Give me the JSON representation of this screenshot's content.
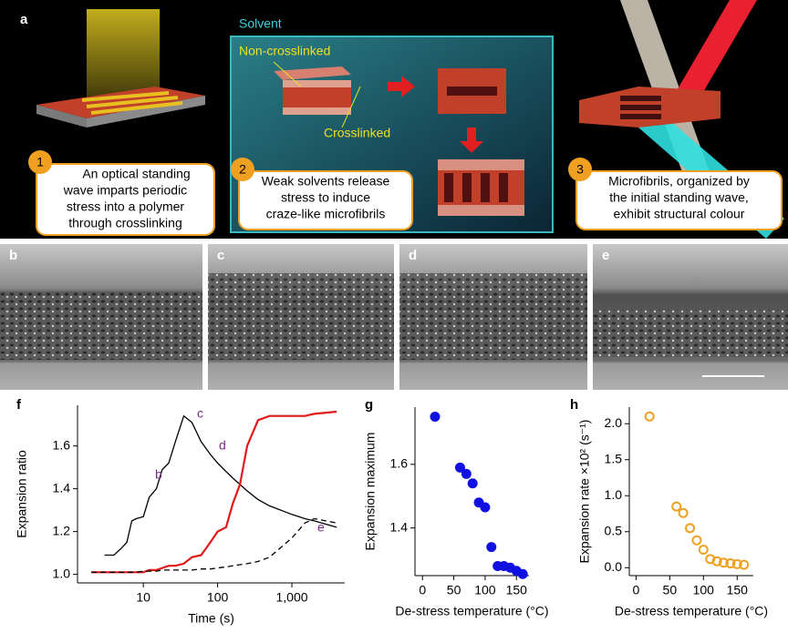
{
  "panel_a": {
    "label": "a",
    "solvent": "Solvent",
    "non_crosslinked": "Non-crosslinked",
    "crosslinked": "Crosslinked",
    "steps": [
      {
        "number": "1",
        "lines": [
          "An optical standing",
          "wave imparts periodic",
          "stress into a polymer",
          "through crosslinking"
        ]
      },
      {
        "number": "2",
        "lines": [
          "Weak solvents release",
          "stress to induce",
          "craze-like microfibrils"
        ]
      },
      {
        "number": "3",
        "lines": [
          "Microfibrils, organized by",
          "the initial standing wave,",
          "exhibit structural colour"
        ]
      }
    ]
  },
  "sem_panels": [
    "b",
    "c",
    "d",
    "e"
  ],
  "chart_data": [
    {
      "type": "line",
      "panel_label": "f",
      "x_label": "Time (s)",
      "y_label": "Expansion ratio",
      "xscale": "log",
      "xlim": [
        1.3,
        5150
      ],
      "ylim": [
        0.96,
        1.79
      ],
      "xticks": [
        10,
        100,
        {
          "value": 1000,
          "label": "1,000"
        }
      ],
      "yticks": [
        {
          "value": 1,
          "label": "1.0"
        },
        1.2,
        1.4,
        1.6
      ],
      "annotations": [
        "c",
        "d",
        "b",
        "e"
      ],
      "x": [
        2,
        3,
        4,
        5,
        6,
        7,
        8,
        10,
        12,
        15,
        18,
        22,
        27,
        35,
        45,
        60,
        80,
        100,
        130,
        160,
        200,
        250,
        350,
        500,
        1000,
        1500,
        2000,
        4000
      ],
      "series": [
        {
          "color": "#000000",
          "style": "solid",
          "values": [
            null,
            1.09,
            1.09,
            1.12,
            1.15,
            1.25,
            1.26,
            1.27,
            1.36,
            1.4,
            1.49,
            1.52,
            1.62,
            1.74,
            1.71,
            1.62,
            1.56,
            1.52,
            1.48,
            1.45,
            1.42,
            1.39,
            1.35,
            1.32,
            1.28,
            1.26,
            1.25,
            1.22
          ]
        },
        {
          "color": "#e0191b",
          "style": "solid",
          "values": [
            1.01,
            1.01,
            1.01,
            1.01,
            1.01,
            1.01,
            1.01,
            1.01,
            1.02,
            1.02,
            1.03,
            1.04,
            1.04,
            1.05,
            1.08,
            1.09,
            1.15,
            1.2,
            1.22,
            1.33,
            1.42,
            1.6,
            1.72,
            1.74,
            1.74,
            1.74,
            1.75,
            1.76
          ]
        },
        {
          "color": "#000000",
          "style": "dashed",
          "values": [
            1.01,
            1.01,
            1.01,
            1.01,
            1.01,
            1.01,
            1.01,
            1.015,
            1.015,
            1.015,
            1.02,
            1.02,
            1.02,
            1.02,
            1.02,
            1.025,
            1.025,
            1.03,
            1.035,
            1.04,
            1.045,
            1.05,
            1.06,
            1.08,
            1.17,
            1.24,
            1.26,
            1.24
          ]
        }
      ]
    },
    {
      "type": "scatter",
      "panel_label": "g",
      "x_label": "De-stress temperature (°C)",
      "y_label": "Expansion maximum",
      "marker": "filled",
      "color": "#1010e0",
      "xlim": [
        -12,
        170
      ],
      "ylim": [
        1.25,
        1.78
      ],
      "xticks": [
        0,
        50,
        100,
        150
      ],
      "yticks": [
        1.4,
        1.6
      ],
      "x": [
        20,
        60,
        70,
        80,
        90,
        100,
        110,
        120,
        130,
        140,
        150,
        160
      ],
      "values": [
        1.75,
        1.59,
        1.57,
        1.54,
        1.48,
        1.465,
        1.34,
        1.28,
        1.28,
        1.275,
        1.265,
        1.255
      ]
    },
    {
      "type": "scatter",
      "panel_label": "h",
      "x_label": "De-stress temperature (°C)",
      "y_label": "Expansion rate ×10² (s⁻¹)",
      "marker": "open",
      "color": "#f0a020",
      "xlim": [
        -10,
        174
      ],
      "ylim": [
        -0.11,
        2.23
      ],
      "xticks": [
        0,
        50,
        100,
        150
      ],
      "yticks": [
        {
          "value": 0,
          "label": "0.0"
        },
        0.5,
        {
          "value": 1,
          "label": "1.0"
        },
        1.5,
        {
          "value": 2,
          "label": "2.0"
        }
      ],
      "x": [
        20,
        60,
        70,
        80,
        90,
        100,
        110,
        120,
        130,
        140,
        150,
        160
      ],
      "values": [
        2.1,
        0.85,
        0.76,
        0.55,
        0.38,
        0.25,
        0.12,
        0.09,
        0.07,
        0.06,
        0.05,
        0.04
      ]
    }
  ]
}
